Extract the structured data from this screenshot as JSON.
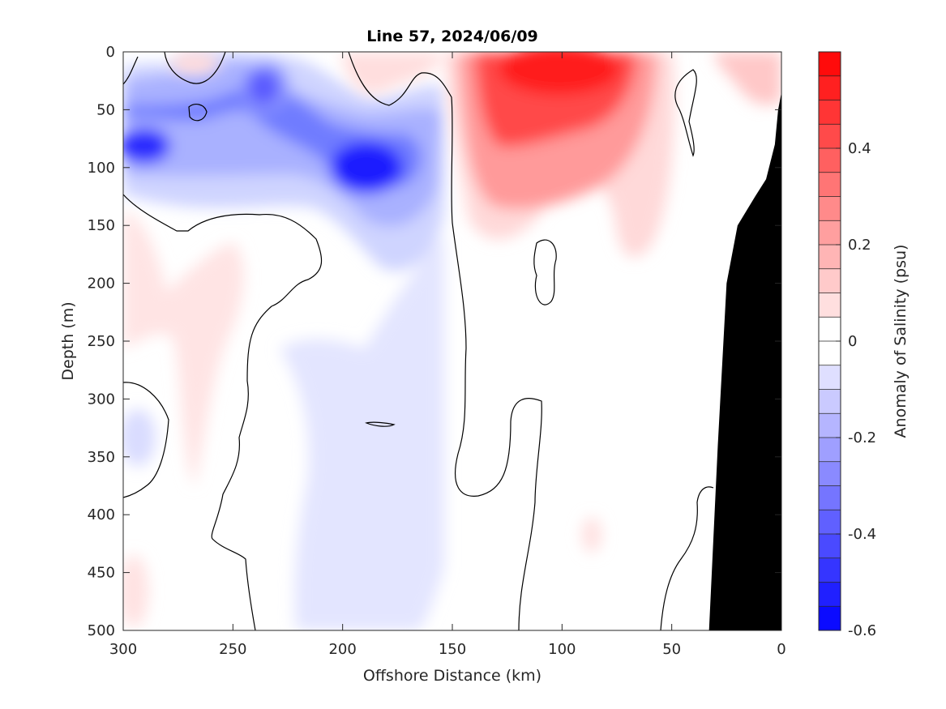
{
  "chart_data": {
    "type": "heatmap",
    "subtype": "filled-contour-section",
    "title": "Line 57, 2024/06/09",
    "xlabel": "Offshore Distance (km)",
    "ylabel": "Depth (m)",
    "colorbar_label": "Anomaly of Salinity (psu)",
    "x_range": [
      300,
      0
    ],
    "x_reversed": true,
    "y_range": [
      0,
      500
    ],
    "y_reversed": true,
    "x_ticks": [
      300,
      250,
      200,
      150,
      100,
      50,
      0
    ],
    "y_ticks": [
      0,
      50,
      100,
      150,
      200,
      250,
      300,
      350,
      400,
      450,
      500
    ],
    "colorbar_range": [
      -0.6,
      0.6
    ],
    "colorbar_ticks": [
      0.4,
      0.2,
      0,
      -0.2,
      -0.4,
      -0.6
    ],
    "colorbar_tick_labels": [
      "0.4",
      "0.2",
      "0",
      "-0.2",
      "-0.4",
      "-0.6"
    ],
    "colorbar_step": 0.05,
    "colormap": {
      "negative": "#0000ff",
      "zero": "#ffffff",
      "positive": "#ff0000"
    },
    "zero_contour_color": "#000000",
    "bathymetry_color": "#000000",
    "features": [
      {
        "label": "surface negative anomaly core",
        "x": 290,
        "y": 80,
        "value": -0.45
      },
      {
        "label": "subsurface negative anomaly core",
        "x": 190,
        "y": 100,
        "value": -0.5
      },
      {
        "label": "upper negative anomaly",
        "x": 235,
        "y": 35,
        "value": -0.35
      },
      {
        "label": "positive anomaly core",
        "x": 95,
        "y": 10,
        "value": 0.55
      },
      {
        "label": "weak offshore positive",
        "x": 260,
        "y": 230,
        "value": 0.07
      },
      {
        "label": "weak nearshore positive",
        "x": 15,
        "y": 20,
        "value": 0.12
      },
      {
        "label": "deep weak negative",
        "x": 190,
        "y": 400,
        "value": -0.07
      }
    ],
    "bathymetry_km_depth": [
      [
        33,
        500
      ],
      [
        31,
        420
      ],
      [
        29,
        340
      ],
      [
        25,
        200
      ],
      [
        20,
        150
      ],
      [
        12,
        125
      ],
      [
        7,
        110
      ],
      [
        3,
        80
      ],
      [
        1.5,
        50
      ],
      [
        0,
        35
      ]
    ]
  }
}
